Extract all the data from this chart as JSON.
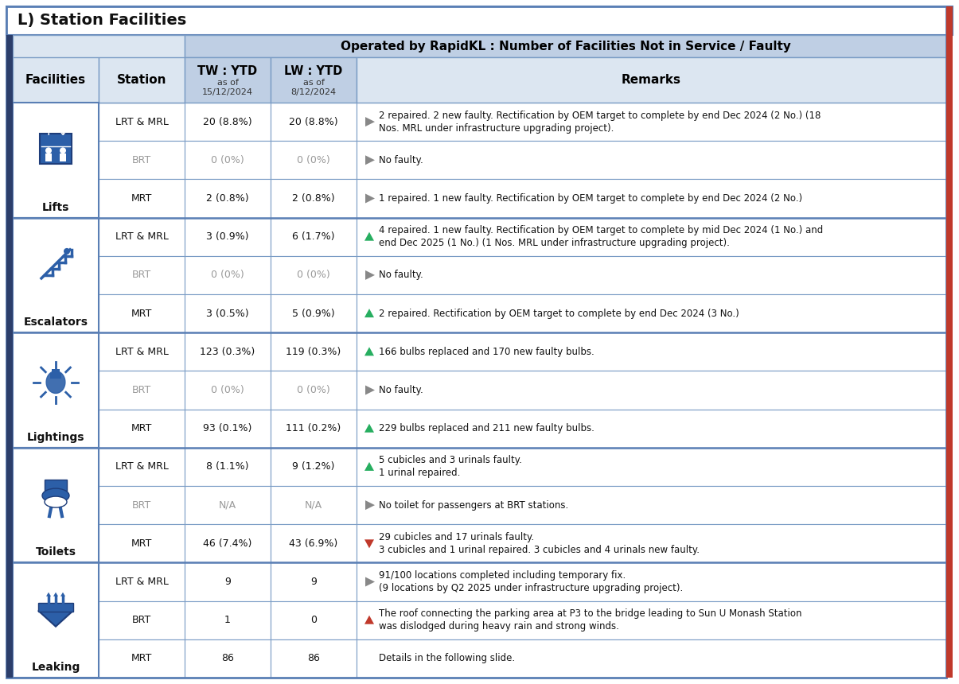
{
  "title": "L) Station Facilities",
  "header_main": "Operated by RapidKL : Number of Facilities Not in Service / Faulty",
  "col_tw": "TW : YTD",
  "col_lw": "LW : YTD",
  "col_tw_sub": "as of\n15/12/2024",
  "col_lw_sub": "as of\n8/12/2024",
  "col_remarks": "Remarks",
  "col_facilities": "Facilities",
  "col_station": "Station",
  "bg_title_bar": "#ffffff",
  "bg_header_light": "#dce6f1",
  "bg_header_medium": "#bfcfe4",
  "bg_white": "#ffffff",
  "border_color": "#7a9cc5",
  "border_dark": "#5a7fb5",
  "side_navy": "#2c3e6b",
  "side_red": "#c0392b",
  "rows": [
    {
      "facility": "Lifts",
      "station": "LRT & MRL",
      "tw": "20 (8.8%)",
      "lw": "20 (8.8%)",
      "arrow": "gray_right",
      "remark": "2 repaired. 2 new faulty. Rectification by OEM target to complete by end Dec 2024 (2 No.) (18\nNos. MRL under infrastructure upgrading project).",
      "dim": false
    },
    {
      "facility": "Lifts",
      "station": "BRT",
      "tw": "0 (0%)",
      "lw": "0 (0%)",
      "arrow": "gray_right",
      "remark": "No faulty.",
      "dim": true
    },
    {
      "facility": "Lifts",
      "station": "MRT",
      "tw": "2 (0.8%)",
      "lw": "2 (0.8%)",
      "arrow": "gray_right",
      "remark": "1 repaired. 1 new faulty. Rectification by OEM target to complete by end Dec 2024 (2 No.)",
      "dim": false
    },
    {
      "facility": "Escalators",
      "station": "LRT & MRL",
      "tw": "3 (0.9%)",
      "lw": "6 (1.7%)",
      "arrow": "green_up",
      "remark": "4 repaired. 1 new faulty. Rectification by OEM target to complete by mid Dec 2024 (1 No.) and\nend Dec 2025 (1 No.) (1 Nos. MRL under infrastructure upgrading project).",
      "dim": false
    },
    {
      "facility": "Escalators",
      "station": "BRT",
      "tw": "0 (0%)",
      "lw": "0 (0%)",
      "arrow": "gray_right",
      "remark": "No faulty.",
      "dim": true
    },
    {
      "facility": "Escalators",
      "station": "MRT",
      "tw": "3 (0.5%)",
      "lw": "5 (0.9%)",
      "arrow": "green_up",
      "remark": "2 repaired. Rectification by OEM target to complete by end Dec 2024 (3 No.)",
      "dim": false
    },
    {
      "facility": "Lightings",
      "station": "LRT & MRL",
      "tw": "123 (0.3%)",
      "lw": "119 (0.3%)",
      "arrow": "green_up",
      "remark": "166 bulbs replaced and 170 new faulty bulbs.",
      "dim": false
    },
    {
      "facility": "Lightings",
      "station": "BRT",
      "tw": "0 (0%)",
      "lw": "0 (0%)",
      "arrow": "gray_right",
      "remark": "No faulty.",
      "dim": true
    },
    {
      "facility": "Lightings",
      "station": "MRT",
      "tw": "93 (0.1%)",
      "lw": "111 (0.2%)",
      "arrow": "green_up",
      "remark": "229 bulbs replaced and 211 new faulty bulbs.",
      "dim": false
    },
    {
      "facility": "Toilets",
      "station": "LRT & MRL",
      "tw": "8 (1.1%)",
      "lw": "9 (1.2%)",
      "arrow": "green_up",
      "remark": "5 cubicles and 3 urinals faulty.\n1 urinal repaired.",
      "dim": false
    },
    {
      "facility": "Toilets",
      "station": "BRT",
      "tw": "N/A",
      "lw": "N/A",
      "arrow": "gray_right",
      "remark": "No toilet for passengers at BRT stations.",
      "dim": true
    },
    {
      "facility": "Toilets",
      "station": "MRT",
      "tw": "46 (7.4%)",
      "lw": "43 (6.9%)",
      "arrow": "red_down",
      "remark": "29 cubicles and 17 urinals faulty.\n3 cubicles and 1 urinal repaired. 3 cubicles and 4 urinals new faulty.",
      "dim": false
    },
    {
      "facility": "Leaking",
      "station": "LRT & MRL",
      "tw": "9",
      "lw": "9",
      "arrow": "gray_right",
      "remark": "91/100 locations completed including temporary fix.\n(9 locations by Q2 2025 under infrastructure upgrading project).",
      "dim": false
    },
    {
      "facility": "Leaking",
      "station": "BRT",
      "tw": "1",
      "lw": "0",
      "arrow": "red_up",
      "remark": "The roof connecting the parking area at P3 to the bridge leading to Sun U Monash Station\nwas dislodged during heavy rain and strong winds.",
      "dim": false
    },
    {
      "facility": "Leaking",
      "station": "MRT",
      "tw": "86",
      "lw": "86",
      "arrow": "none",
      "remark": "Details in the following slide.",
      "dim": false
    }
  ],
  "facilities_order": [
    "Lifts",
    "Escalators",
    "Lightings",
    "Toilets",
    "Leaking"
  ]
}
